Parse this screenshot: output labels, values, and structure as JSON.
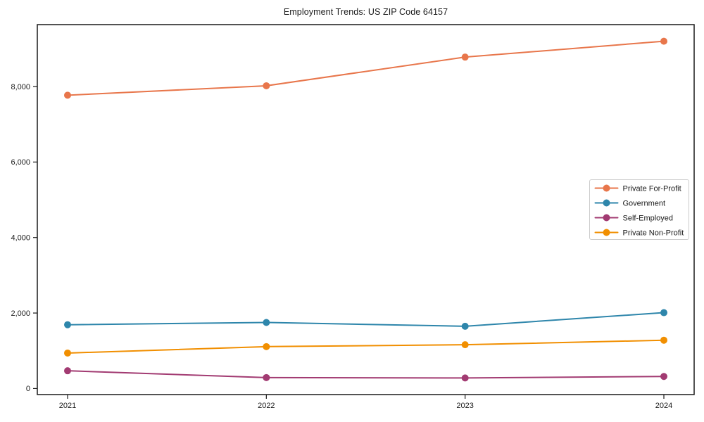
{
  "chart_data": {
    "type": "line",
    "title": "Employment Trends: US ZIP Code 64157",
    "categories": [
      "2021",
      "2022",
      "2023",
      "2024"
    ],
    "series": [
      {
        "name": "Private For-Profit",
        "color": "#E8764B",
        "values": [
          7770,
          8020,
          8780,
          9200
        ]
      },
      {
        "name": "Government",
        "color": "#2E86AB",
        "values": [
          1690,
          1750,
          1650,
          2010
        ]
      },
      {
        "name": "Self-Employed",
        "color": "#A23B72",
        "values": [
          470,
          290,
          280,
          320
        ]
      },
      {
        "name": "Private Non-Profit",
        "color": "#F18F01",
        "values": [
          940,
          1110,
          1160,
          1280
        ]
      }
    ],
    "xlabel": "",
    "ylabel": "",
    "ylim": [
      -160,
      9640
    ],
    "yticks": [
      0,
      2000,
      4000,
      6000,
      8000
    ],
    "ytick_labels": [
      "0",
      "2,000",
      "4,000",
      "6,000",
      "8,000"
    ],
    "grid": false,
    "legend_position": "right-middle",
    "marker": "circle",
    "axis_color": "#1a1a1a",
    "legend_border_color": "#cccccc",
    "background_color": "#ffffff"
  }
}
